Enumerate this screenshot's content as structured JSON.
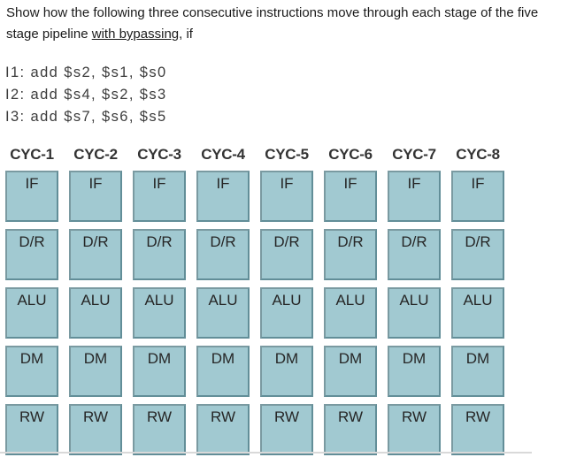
{
  "question": {
    "line1": "Show how the following three consecutive instructions move through each stage of the five",
    "line2_before": "stage pipeline ",
    "underlined": "with bypassing",
    "line2_after": ", if"
  },
  "instructions": [
    "I1: add $s2, $s1, $s0",
    "I2: add $s4, $s2, $s3",
    "I3: add $s7, $s6, $s5"
  ],
  "pipeline": {
    "cycles": [
      "CYC-1",
      "CYC-2",
      "CYC-3",
      "CYC-4",
      "CYC-5",
      "CYC-6",
      "CYC-7",
      "CYC-8"
    ],
    "stages": [
      "IF",
      "D/R",
      "ALU",
      "DM",
      "RW"
    ]
  },
  "colors": {
    "box_fill": "#a1c9d1",
    "box_border": "#7a9aa1",
    "box_border_dark": "#628e98",
    "header_text": "#333333",
    "cell_text": "#262626",
    "divider": "#d9d9d9"
  }
}
